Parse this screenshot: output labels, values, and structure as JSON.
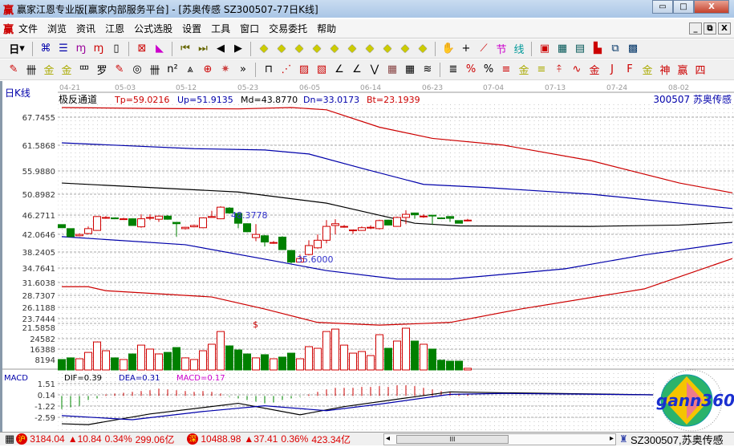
{
  "window": {
    "title": "赢家江恩专业版[赢家内部服务平台] - [苏奥传感  SZ300507-77日K线]",
    "logo": "赢",
    "minimize": "▭",
    "maximize": "□",
    "close": "X"
  },
  "menu": {
    "logo": "赢",
    "items": [
      "文件",
      "浏览",
      "资讯",
      "江恩",
      "公式选股",
      "设置",
      "工具",
      "窗口",
      "交易委托",
      "帮助"
    ],
    "mdi": [
      "_",
      "⧉",
      "X"
    ]
  },
  "toolbar1": {
    "period_label": "日",
    "icons": [
      "chart-icon",
      "report-icon",
      "wave3-icon",
      "wave9-icon",
      "candle-icon",
      "extreme-icon",
      "flag-icon",
      "first-icon",
      "last-icon",
      "left-icon",
      "right-icon",
      "nav1-icon",
      "nav2-icon",
      "nav3-icon",
      "nav4-icon",
      "nav5-icon",
      "nav6-icon",
      "nav7-icon",
      "nav8-icon",
      "nav9-icon",
      "nav10-icon",
      "hand-icon",
      "cross-icon",
      "line-icon",
      "section-icon",
      "cycle-icon",
      "calendar-icon",
      "calculator-icon",
      "notes-icon",
      "save-icon",
      "network-icon",
      "trade-icon"
    ]
  },
  "toolbar2": {
    "more": "»"
  },
  "chart": {
    "period_label": "日K线",
    "indicator": {
      "name": "极反通道",
      "tp": "Tp=59.0216",
      "up": "Up=51.9135",
      "md": "Md=43.8770",
      "dn": "Dn=33.0173",
      "bt": "Bt=23.1939"
    },
    "stock": "300507  苏奥传感",
    "dates": [
      "04-21",
      "05-03",
      "05-12",
      "05-23",
      "06-05",
      "06-14",
      "06-23",
      "07-04",
      "07-13",
      "07-24",
      "08-02"
    ],
    "price_ticks": [
      "67.7455",
      "61.5868",
      "55.9880",
      "50.8982",
      "46.2711",
      "42.0646",
      "38.2405",
      "34.7641",
      "31.6038",
      "28.7307",
      "26.1188",
      "23.7444",
      "21.5858"
    ],
    "volume_ticks": [
      "24582",
      "16388",
      "8194"
    ],
    "high_label": "48.3778",
    "low_label": "35.6000",
    "marker": "$",
    "colors": {
      "up": "#d00000",
      "down": "#008000",
      "tp": "#cc0000",
      "up_line": "#0000aa",
      "md": "#000000",
      "dn": "#0000aa",
      "bt": "#cc0000"
    },
    "candles": [
      [
        43.7,
        43.0,
        43.7,
        43.0
      ],
      [
        42.8,
        41.0,
        42.8,
        40.9
      ],
      [
        41.2,
        41.5,
        41.7,
        41.1
      ],
      [
        41.7,
        42.8,
        43.3,
        41.5
      ],
      [
        42.4,
        45.5,
        45.6,
        42.3
      ],
      [
        45.3,
        45.3,
        45.6,
        45.0
      ],
      [
        45.2,
        45.0,
        45.3,
        44.9
      ],
      [
        44.9,
        45.0,
        45.2,
        44.8
      ],
      [
        45.0,
        43.5,
        45.1,
        43.4
      ],
      [
        43.2,
        45.0,
        46.0,
        43.0
      ],
      [
        45.3,
        45.3,
        46.0,
        44.7
      ],
      [
        44.9,
        45.6,
        45.7,
        44.3
      ],
      [
        45.6,
        44.9,
        45.8,
        44.8
      ],
      [
        44.2,
        43.9,
        44.2,
        41.0
      ],
      [
        42.8,
        43.1,
        43.2,
        42.6
      ],
      [
        43.2,
        43.5,
        43.7,
        43.1
      ],
      [
        43.0,
        45.2,
        45.3,
        42.9
      ],
      [
        45.3,
        45.5,
        46.8,
        45.2
      ],
      [
        45.0,
        47.6,
        47.8,
        44.9
      ],
      [
        47.4,
        46.3,
        47.6,
        46.1
      ],
      [
        46.2,
        44.0,
        46.3,
        42.9
      ],
      [
        43.9,
        42.1,
        44.0,
        42.0
      ],
      [
        40.8,
        41.5,
        43.8,
        40.0
      ],
      [
        41.2,
        39.8,
        41.4,
        38.8
      ],
      [
        39.7,
        39.7,
        40.0,
        39.4
      ],
      [
        40.9,
        38.1,
        41.1,
        38.0
      ],
      [
        37.9,
        35.3,
        38.0,
        35.0
      ],
      [
        35.3,
        36.1,
        37.0,
        35.2
      ],
      [
        37.0,
        39.0,
        40.2,
        36.8
      ],
      [
        38.5,
        40.2,
        41.5,
        38.3
      ],
      [
        40.2,
        43.3,
        44.7,
        39.5
      ],
      [
        43.5,
        43.9,
        44.9,
        41.5
      ],
      [
        43.3,
        43.3,
        43.6,
        43.0
      ],
      [
        42.5,
        42.5,
        42.6,
        41.6
      ],
      [
        42.4,
        43.0,
        43.3,
        42.3
      ],
      [
        43.1,
        43.1,
        43.5,
        42.7
      ],
      [
        42.8,
        44.6,
        44.8,
        42.6
      ],
      [
        44.7,
        43.6,
        44.8,
        43.5
      ],
      [
        43.3,
        45.3,
        45.5,
        43.2
      ],
      [
        45.3,
        46.0,
        46.9,
        43.8
      ],
      [
        46.3,
        45.9,
        46.4,
        45.0
      ],
      [
        45.6,
        45.6,
        46.0,
        45.2
      ],
      [
        45.8,
        45.7,
        45.8,
        43.7
      ],
      [
        45.2,
        45.1,
        45.3,
        44.9
      ],
      [
        45.5,
        45.1,
        45.6,
        44.3
      ],
      [
        44.6,
        44.0,
        44.6,
        44.0
      ],
      [
        44.7,
        44.7,
        45.0,
        44.4
      ]
    ],
    "volumes": [
      8200,
      9500,
      8800,
      13800,
      22000,
      15100,
      9500,
      8200,
      12600,
      19500,
      16400,
      12600,
      13800,
      17600,
      9500,
      8200,
      15100,
      20200,
      30200,
      18900,
      15700,
      12600,
      9500,
      12000,
      8800,
      10100,
      13200,
      8800,
      18300,
      17000,
      30200,
      32100,
      19500,
      13200,
      14500,
      11300,
      27700,
      17000,
      22700,
      32800,
      22700,
      20200,
      16400,
      7600,
      6900,
      6900,
      1300
    ],
    "channels": {
      "tp": [
        [
          0,
          69.9
        ],
        [
          10,
          69.7
        ],
        [
          20,
          69.6
        ],
        [
          26,
          69.9
        ],
        [
          30,
          69.4
        ],
        [
          36,
          65.5
        ],
        [
          42,
          63.0
        ],
        [
          50,
          61.5
        ],
        [
          60,
          58.0
        ],
        [
          70,
          53.0
        ],
        [
          76,
          50.8
        ]
      ],
      "up": [
        [
          0,
          62.0
        ],
        [
          15,
          60.7
        ],
        [
          23,
          60.4
        ],
        [
          28,
          59.5
        ],
        [
          34,
          56.3
        ],
        [
          41,
          52.7
        ],
        [
          48,
          52.0
        ],
        [
          60,
          50.5
        ],
        [
          76,
          47.3
        ]
      ],
      "md": [
        [
          0,
          53.0
        ],
        [
          20,
          51.0
        ],
        [
          30,
          48.5
        ],
        [
          36,
          45.8
        ],
        [
          40,
          44.0
        ],
        [
          45,
          43.4
        ],
        [
          60,
          43.3
        ],
        [
          70,
          43.6
        ],
        [
          76,
          44.2
        ]
      ],
      "dn": [
        [
          0,
          41.0
        ],
        [
          14,
          39.2
        ],
        [
          24,
          35.6
        ],
        [
          30,
          33.4
        ],
        [
          38,
          31.5
        ],
        [
          44,
          31.5
        ],
        [
          52,
          32.9
        ],
        [
          57,
          33.8
        ],
        [
          66,
          36.9
        ],
        [
          76,
          39.7
        ]
      ],
      "bt": [
        [
          0,
          29.8
        ],
        [
          3,
          29.8
        ],
        [
          5,
          28.9
        ],
        [
          17,
          27.5
        ],
        [
          23,
          24.8
        ],
        [
          29,
          21.8
        ],
        [
          36,
          21.2
        ],
        [
          44,
          21.8
        ],
        [
          52,
          24.8
        ],
        [
          66,
          29.3
        ],
        [
          76,
          36.1
        ]
      ]
    }
  },
  "macd": {
    "title": "MACD",
    "dif": "DIF=0.39",
    "dea": "DEA=0.31",
    "macd": "MACD=0.17",
    "ticks": [
      "1.51",
      "0.14",
      "-1.22",
      "-2.59"
    ],
    "colors": {
      "dif": "#000000",
      "dea": "#0000aa",
      "macd": "#cc00cc"
    },
    "hist": [
      -1.6,
      -1.4,
      -1.2,
      -0.5,
      -0.3,
      0.2,
      0.3,
      0.4,
      0.5,
      0.6,
      0.7,
      0.9,
      0.8,
      0.7,
      0.6,
      0.5,
      0.6,
      0.5,
      0.3,
      -0.1,
      -0.3,
      -0.5,
      -0.7,
      -0.9,
      -0.8,
      -0.5,
      -0.3,
      -0.1,
      0.2,
      0.5,
      0.8,
      1.0,
      1.0,
      1.0,
      1.1,
      1.1,
      1.2,
      1.1,
      1.3,
      1.3,
      1.2,
      1.0,
      0.8,
      0.6,
      0.5,
      0.3,
      0.17
    ],
    "dif_line": [
      [
        0,
        -3.4
      ],
      [
        3,
        -3.5
      ],
      [
        10,
        -2.2
      ],
      [
        20,
        -0.9
      ],
      [
        27,
        -2.3
      ],
      [
        32,
        -1.3
      ],
      [
        40,
        -0.1
      ],
      [
        44,
        0.5
      ],
      [
        50,
        0.39
      ],
      [
        67,
        0.14
      ]
    ],
    "dea_line": [
      [
        0,
        -2.4
      ],
      [
        8,
        -2.9
      ],
      [
        16,
        -1.9
      ],
      [
        23,
        -1.2
      ],
      [
        30,
        -1.8
      ],
      [
        36,
        -1.0
      ],
      [
        44,
        0.2
      ],
      [
        50,
        0.31
      ],
      [
        67,
        0.14
      ]
    ]
  },
  "logo_text": "gann360",
  "status": {
    "sh_badge": "沪",
    "sh_index": "3184.04",
    "sh_change": "▲10.84",
    "sh_pct": "0.34%",
    "sh_amount": "299.06亿",
    "sz_badge": "深",
    "sz_index": "10488.98",
    "sz_change": "▲37.41",
    "sz_pct": "0.36%",
    "sz_amount": "423.34亿",
    "scroll_left": "◂",
    "scroll_right": "▸",
    "scroll_thumb": "III",
    "stock": "SZ300507,苏奥传感"
  }
}
